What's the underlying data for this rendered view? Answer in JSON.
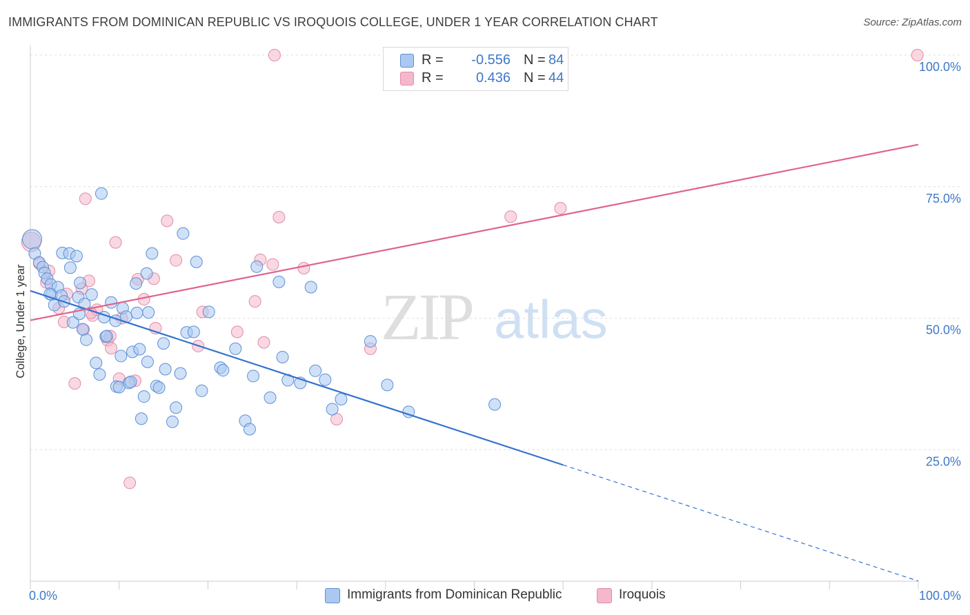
{
  "header": {
    "title": "IMMIGRANTS FROM DOMINICAN REPUBLIC VS IROQUOIS COLLEGE, UNDER 1 YEAR CORRELATION CHART",
    "source": "Source: ZipAtlas.com"
  },
  "watermark": {
    "zip": "ZIP",
    "atlas": "atlas"
  },
  "legend": {
    "rows": [
      {
        "r_label": "R =",
        "r_value": "-0.556",
        "n_label": "N =",
        "n_value": "84",
        "color": "#aac8f0"
      },
      {
        "r_label": "R =",
        "r_value": "0.436",
        "n_label": "N =",
        "n_value": "44",
        "color": "#f4b8ca"
      }
    ]
  },
  "colors": {
    "blue_fill": "#aac8f0",
    "blue_stroke": "#5b8fd6",
    "blue_line": "#3373cf",
    "pink_fill": "#f4b8ca",
    "pink_stroke": "#e28aa6",
    "pink_line": "#e0628b",
    "tick_label": "#3e78c8",
    "grid": "#dddddd"
  },
  "chart_data": {
    "type": "scatter",
    "title": "IMMIGRANTS FROM DOMINICAN REPUBLIC VS IROQUOIS COLLEGE, UNDER 1 YEAR CORRELATION CHART",
    "xlabel": "",
    "ylabel": "College, Under 1 year",
    "xlim": [
      0,
      100
    ],
    "ylim": [
      0,
      100
    ],
    "x_ticks": [
      "0.0%",
      "100.0%"
    ],
    "y_ticks": [
      {
        "value": 25,
        "label": "25.0%"
      },
      {
        "value": 50,
        "label": "50.0%"
      },
      {
        "value": 75,
        "label": "75.0%"
      },
      {
        "value": 100,
        "label": "100.0%"
      }
    ],
    "grid": true,
    "legend_position": "top-center",
    "series": [
      {
        "name": "Immigrants from Dominican Republic",
        "color": "#aac8f0",
        "stroke": "#5b8fd6",
        "trend": {
          "x": [
            0,
            60
          ],
          "y": [
            55.2,
            22.1
          ],
          "dashed_extension": [
            60,
            100
          ]
        },
        "points": [
          [
            0.2,
            65.0
          ],
          [
            0.5,
            62.3
          ],
          [
            1.0,
            60.6
          ],
          [
            1.4,
            59.7
          ],
          [
            1.6,
            58.6
          ],
          [
            1.9,
            57.5
          ],
          [
            2.3,
            56.4
          ],
          [
            2.4,
            54.5
          ],
          [
            2.7,
            52.5
          ],
          [
            3.1,
            55.9
          ],
          [
            3.5,
            54.3
          ],
          [
            3.8,
            53.2
          ],
          [
            3.6,
            62.4
          ],
          [
            4.4,
            62.3
          ],
          [
            4.5,
            59.6
          ],
          [
            5.2,
            61.8
          ],
          [
            5.4,
            54.0
          ],
          [
            5.6,
            56.7
          ],
          [
            5.5,
            50.8
          ],
          [
            5.9,
            47.9
          ],
          [
            6.3,
            45.9
          ],
          [
            6.9,
            54.5
          ],
          [
            7.4,
            41.5
          ],
          [
            7.8,
            39.3
          ],
          [
            8.0,
            73.7
          ],
          [
            8.3,
            50.2
          ],
          [
            8.5,
            46.5
          ],
          [
            8.6,
            46.6
          ],
          [
            9.1,
            53.0
          ],
          [
            9.6,
            49.5
          ],
          [
            9.7,
            37.0
          ],
          [
            10.0,
            36.9
          ],
          [
            10.2,
            42.8
          ],
          [
            10.4,
            51.9
          ],
          [
            10.8,
            50.3
          ],
          [
            11.1,
            37.7
          ],
          [
            11.3,
            37.9
          ],
          [
            11.5,
            43.6
          ],
          [
            11.9,
            56.6
          ],
          [
            12.0,
            51.0
          ],
          [
            12.3,
            44.1
          ],
          [
            12.5,
            30.9
          ],
          [
            12.8,
            35.1
          ],
          [
            13.1,
            58.5
          ],
          [
            13.2,
            41.7
          ],
          [
            13.3,
            51.1
          ],
          [
            13.7,
            62.3
          ],
          [
            14.2,
            37.1
          ],
          [
            14.5,
            36.8
          ],
          [
            15.0,
            45.2
          ],
          [
            15.2,
            40.3
          ],
          [
            16.0,
            30.3
          ],
          [
            16.4,
            33.0
          ],
          [
            16.9,
            39.5
          ],
          [
            17.2,
            66.1
          ],
          [
            17.6,
            47.3
          ],
          [
            18.4,
            47.4
          ],
          [
            18.7,
            60.7
          ],
          [
            19.3,
            36.2
          ],
          [
            20.1,
            51.2
          ],
          [
            21.4,
            40.6
          ],
          [
            21.7,
            40.1
          ],
          [
            23.1,
            44.2
          ],
          [
            24.2,
            30.5
          ],
          [
            24.7,
            28.9
          ],
          [
            25.1,
            39.0
          ],
          [
            25.5,
            59.8
          ],
          [
            27.0,
            34.9
          ],
          [
            28.0,
            56.9
          ],
          [
            28.4,
            42.6
          ],
          [
            29.0,
            38.2
          ],
          [
            30.4,
            37.7
          ],
          [
            31.6,
            55.9
          ],
          [
            32.1,
            40.0
          ],
          [
            33.2,
            38.3
          ],
          [
            34.0,
            32.7
          ],
          [
            35.0,
            34.6
          ],
          [
            38.3,
            45.6
          ],
          [
            40.2,
            37.3
          ],
          [
            42.6,
            32.2
          ],
          [
            52.3,
            33.6
          ],
          [
            2.2,
            54.6
          ],
          [
            4.8,
            49.2
          ],
          [
            6.1,
            52.7
          ]
        ]
      },
      {
        "name": "Iroquois",
        "color": "#f4b8ca",
        "stroke": "#e28aa6",
        "trend": {
          "x": [
            0,
            100
          ],
          "y": [
            49.6,
            83.0
          ]
        },
        "points": [
          [
            0.1,
            64.5
          ],
          [
            1.0,
            60.4
          ],
          [
            1.8,
            56.8
          ],
          [
            2.1,
            59.0
          ],
          [
            3.2,
            51.9
          ],
          [
            3.8,
            49.3
          ],
          [
            4.1,
            54.6
          ],
          [
            5.0,
            37.6
          ],
          [
            5.8,
            55.6
          ],
          [
            6.0,
            47.8
          ],
          [
            6.2,
            72.7
          ],
          [
            6.6,
            57.1
          ],
          [
            7.0,
            50.5
          ],
          [
            7.5,
            51.6
          ],
          [
            8.7,
            45.8
          ],
          [
            9.0,
            46.6
          ],
          [
            9.1,
            44.3
          ],
          [
            9.6,
            64.4
          ],
          [
            10.3,
            50.0
          ],
          [
            11.2,
            18.7
          ],
          [
            11.8,
            38.1
          ],
          [
            12.1,
            57.4
          ],
          [
            12.8,
            53.6
          ],
          [
            13.9,
            57.5
          ],
          [
            14.1,
            48.1
          ],
          [
            15.4,
            68.5
          ],
          [
            16.4,
            61.0
          ],
          [
            18.9,
            44.7
          ],
          [
            19.4,
            51.2
          ],
          [
            23.3,
            47.4
          ],
          [
            25.3,
            53.2
          ],
          [
            25.9,
            61.1
          ],
          [
            26.3,
            45.4
          ],
          [
            27.3,
            60.2
          ],
          [
            28.0,
            69.2
          ],
          [
            30.8,
            59.5
          ],
          [
            34.5,
            30.8
          ],
          [
            38.3,
            44.2
          ],
          [
            54.1,
            69.3
          ],
          [
            59.7,
            70.9
          ],
          [
            99.9,
            100.0
          ],
          [
            27.5,
            100.0
          ],
          [
            10.0,
            38.5
          ],
          [
            6.8,
            51.0
          ]
        ]
      }
    ]
  },
  "bottom_legend": {
    "items": [
      {
        "label": "Immigrants from Dominican Republic",
        "color": "#aac8f0"
      },
      {
        "label": "Iroquois",
        "color": "#f4b8ca"
      }
    ]
  }
}
